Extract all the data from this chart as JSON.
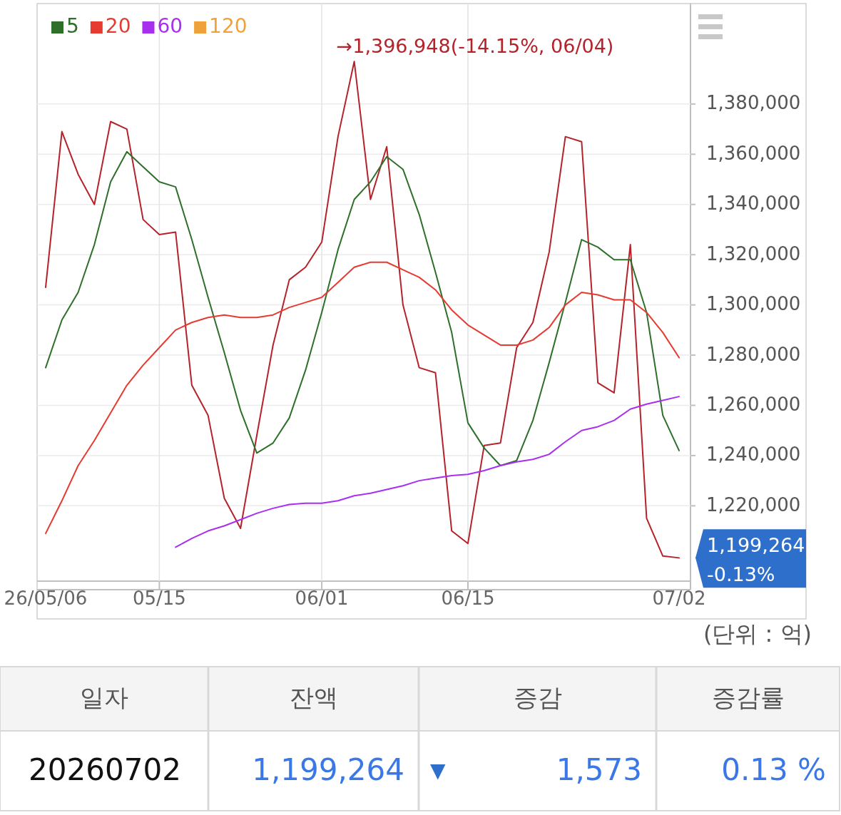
{
  "chart_data": [
    {
      "type": "line",
      "categories": [
        "26/05/06",
        null,
        null,
        null,
        null,
        null,
        null,
        "05/15",
        null,
        null,
        null,
        null,
        null,
        null,
        null,
        null,
        null,
        "06/01",
        null,
        null,
        null,
        null,
        null,
        null,
        null,
        null,
        "06/15",
        null,
        null,
        null,
        null,
        null,
        null,
        null,
        null,
        null,
        null,
        null,
        null,
        "07/02"
      ],
      "series": [
        {
          "color": "#b5232a",
          "values": [
            1307000,
            1369000,
            1352000,
            1340000,
            1373000,
            1370000,
            1334000,
            1328000,
            1329000,
            1268000,
            1256000,
            1223000,
            1211000,
            1248000,
            1284000,
            1310000,
            1315000,
            1325000,
            1367000,
            1396948,
            1342000,
            1363000,
            1300000,
            1275000,
            1273000,
            1210000,
            1205000,
            1244000,
            1245000,
            1283000,
            1293000,
            1321000,
            1367000,
            1365000,
            1269000,
            1265000,
            1324000,
            1215000,
            1200000,
            1199264
          ]
        },
        {
          "name": "5",
          "color": "#2e6f2a",
          "values": [
            1275000,
            1294000,
            1305000,
            1324000,
            1349000,
            1361000,
            1355000,
            1349000,
            1347000,
            1326000,
            1303000,
            1281000,
            1258000,
            1241000,
            1245000,
            1255000,
            1274000,
            1297000,
            1322000,
            1342000,
            1349000,
            1359000,
            1354000,
            1336000,
            1313000,
            1289000,
            1253000,
            1243000,
            1236000,
            1238000,
            1254000,
            1277000,
            1301000,
            1326000,
            1323000,
            1318000,
            1318000,
            1297000,
            1256000,
            1242000
          ]
        },
        {
          "name": "20",
          "color": "#e53b30",
          "values": [
            1209000,
            1222000,
            1236000,
            1246000,
            1257000,
            1268000,
            1276000,
            1283000,
            1290000,
            1293000,
            1295000,
            1296000,
            1295000,
            1295000,
            1296000,
            1299000,
            1301000,
            1303000,
            1309000,
            1315000,
            1317000,
            1317000,
            1314000,
            1311000,
            1306000,
            1298000,
            1292000,
            1288000,
            1284000,
            1284000,
            1286000,
            1291000,
            1300000,
            1305000,
            1304000,
            1302000,
            1302000,
            1297000,
            1289000,
            1279000
          ]
        },
        {
          "name": "60",
          "color": "#a82ff0",
          "values": [
            null,
            null,
            null,
            null,
            null,
            null,
            null,
            null,
            1203500,
            1207000,
            1210000,
            1212000,
            1214500,
            1217000,
            1219000,
            1220500,
            1221000,
            1221000,
            1222000,
            1224000,
            1225000,
            1226500,
            1228000,
            1230000,
            1231000,
            1232000,
            1232500,
            1234000,
            1236000,
            1237500,
            1238500,
            1240500,
            1245500,
            1250000,
            1251500,
            1254000,
            1258500,
            1260500,
            1262000,
            1263500
          ]
        },
        {
          "name": "120",
          "color": "#f0a23a",
          "values": [
            null,
            null,
            null,
            null,
            null,
            null,
            null,
            null,
            null,
            null,
            null,
            null,
            null,
            null,
            null,
            null,
            null,
            null,
            null,
            null,
            null,
            null,
            null,
            null,
            null,
            null,
            null,
            null,
            null,
            null,
            null,
            null,
            null,
            null,
            null,
            null,
            null,
            null,
            null,
            null
          ]
        }
      ],
      "ylim": [
        1190000,
        1420000
      ],
      "yticks": [
        {
          "value": 1220000,
          "label": "1,220,000"
        },
        {
          "value": 1240000,
          "label": "1,240,000"
        },
        {
          "value": 1260000,
          "label": "1,260,000"
        },
        {
          "value": 1280000,
          "label": "1,280,000"
        },
        {
          "value": 1300000,
          "label": "1,300,000"
        },
        {
          "value": 1320000,
          "label": "1,320,000"
        },
        {
          "value": 1340000,
          "label": "1,340,000"
        },
        {
          "value": 1360000,
          "label": "1,360,000"
        },
        {
          "value": 1380000,
          "label": "1,380,000"
        }
      ],
      "grid": true,
      "legend": "top left",
      "annotations": [
        "→1,396,948(-14.15%, 06/04)",
        "1,199,264\n-0.13%",
        "(단위 : 억)"
      ]
    },
    {
      "type": "other",
      "categories": [
        "일자",
        "잔액",
        "증감",
        "증감률"
      ],
      "annotations": [
        "20260702",
        "1,199,264",
        "▼",
        "1,573",
        "0.13 %"
      ]
    }
  ]
}
